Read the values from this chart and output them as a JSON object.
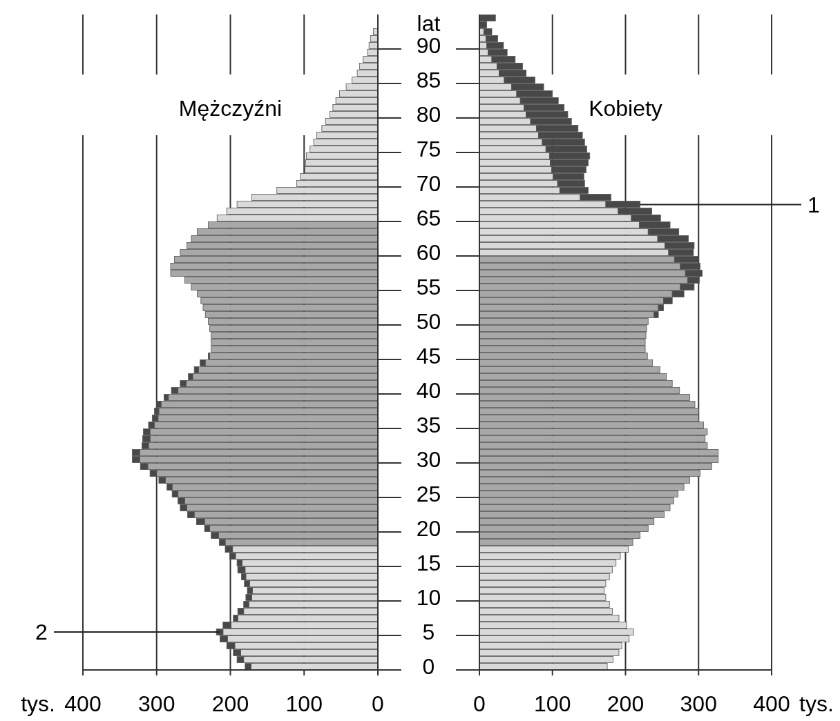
{
  "chart_data": [
    {
      "type": "bar",
      "orientation": "horizontal",
      "stacked": true,
      "title": "Mężczyźni",
      "xlabel": "tys.",
      "xlim": [
        400,
        0
      ],
      "xticks": [
        400,
        300,
        200,
        100,
        0
      ],
      "grid": "x",
      "tick_labels": "x",
      "categories": [
        null,
        null,
        null,
        null,
        "90",
        null,
        null,
        null,
        null,
        "85",
        null,
        null,
        null,
        null,
        "80",
        null,
        null,
        null,
        null,
        "75",
        null,
        null,
        null,
        null,
        "70",
        null,
        null,
        null,
        null,
        "65",
        null,
        null,
        null,
        null,
        "60",
        null,
        null,
        null,
        null,
        "55",
        null,
        null,
        null,
        null,
        "50",
        null,
        null,
        null,
        null,
        "45",
        null,
        null,
        null,
        null,
        "40",
        null,
        null,
        null,
        null,
        "35",
        null,
        null,
        null,
        null,
        "30",
        null,
        null,
        null,
        null,
        "25",
        null,
        null,
        null,
        null,
        "20",
        null,
        null,
        null,
        null,
        "15",
        null,
        null,
        null,
        null,
        "10",
        null,
        null,
        null,
        null,
        "5",
        null,
        null,
        null,
        null,
        "0"
      ],
      "series": [
        {
          "values": [
            null,
            null,
            6,
            10,
            12,
            14,
            20,
            25,
            28,
            35,
            43,
            52,
            57,
            61,
            65,
            71,
            76,
            83,
            87,
            92,
            97,
            98,
            99,
            105,
            110,
            137,
            171,
            191,
            205,
            218,
            230,
            245,
            253,
            259,
            268,
            276,
            281,
            281,
            262,
            253,
            245,
            240,
            237,
            234,
            230,
            228,
            226,
            226,
            226,
            228,
            234,
            243,
            251,
            260,
            271,
            284,
            294,
            297,
            298,
            303,
            309,
            309,
            311,
            323,
            323,
            312,
            300,
            288,
            279,
            271,
            262,
            259,
            249,
            235,
            228,
            216,
            207,
            197,
            193,
            184,
            180,
            179,
            174,
            170,
            171,
            175,
            182,
            190,
            199,
            210,
            204,
            194,
            186,
            182,
            172
          ],
          "colors": [
            null,
            null,
            "#dadada",
            "#dadada",
            "#dadada",
            "#dadada",
            "#dadada",
            "#dadada",
            "#dadada",
            "#dadada",
            "#dadada",
            "#dadada",
            "#dadada",
            "#dadada",
            "#dadada",
            "#dadada",
            "#dadada",
            "#dadada",
            "#dadada",
            "#dadada",
            "#dadada",
            "#dadada",
            "#dadada",
            "#dadada",
            "#dadada",
            "#dadada",
            "#dadada",
            "#dadada",
            "#dadada",
            "#dadada",
            "#a8a8a8",
            "#a8a8a8",
            "#a8a8a8",
            "#a8a8a8",
            "#a8a8a8",
            "#a8a8a8",
            "#a8a8a8",
            "#a8a8a8",
            "#a8a8a8",
            "#a8a8a8",
            "#a8a8a8",
            "#a8a8a8",
            "#a8a8a8",
            "#a8a8a8",
            "#a8a8a8",
            "#a8a8a8",
            "#a8a8a8",
            "#a8a8a8",
            "#a8a8a8",
            "#a8a8a8",
            "#a8a8a8",
            "#a8a8a8",
            "#a8a8a8",
            "#a8a8a8",
            "#a8a8a8",
            "#a8a8a8",
            "#a8a8a8",
            "#a8a8a8",
            "#a8a8a8",
            "#a8a8a8",
            "#a8a8a8",
            "#a8a8a8",
            "#a8a8a8",
            "#a8a8a8",
            "#a8a8a8",
            "#a8a8a8",
            "#a8a8a8",
            "#a8a8a8",
            "#a8a8a8",
            "#a8a8a8",
            "#a8a8a8",
            "#a8a8a8",
            "#a8a8a8",
            "#a8a8a8",
            "#a8a8a8",
            "#a8a8a8",
            "#a8a8a8",
            "#dadada",
            "#dadada",
            "#dadada",
            "#dadada",
            "#dadada",
            "#dadada",
            "#dadada",
            "#dadada",
            "#dadada",
            "#dadada",
            "#dadada",
            "#dadada",
            "#dadada",
            "#dadada",
            "#dadada",
            "#dadada",
            "#dadada",
            "#dadada"
          ]
        },
        {
          "color": "#484848",
          "values": [
            null,
            null,
            null,
            null,
            null,
            null,
            null,
            null,
            null,
            null,
            null,
            null,
            null,
            null,
            null,
            null,
            null,
            null,
            null,
            null,
            null,
            null,
            null,
            null,
            null,
            null,
            null,
            null,
            null,
            null,
            null,
            null,
            null,
            null,
            null,
            null,
            null,
            null,
            null,
            null,
            null,
            null,
            null,
            null,
            null,
            null,
            null,
            null,
            null,
            2,
            7,
            6,
            6,
            8,
            9,
            6,
            6,
            6,
            8,
            8,
            9,
            10,
            9,
            10,
            10,
            10,
            9,
            9,
            7,
            8,
            9,
            9,
            9,
            11,
            7,
            10,
            8,
            10,
            8,
            7,
            10,
            6,
            7,
            7,
            8,
            7,
            8,
            6,
            11,
            9,
            10,
            11,
            10,
            9,
            8
          ]
        }
      ],
      "annotations": [
        {
          "text": "2",
          "x": 214,
          "y": "5"
        }
      ]
    },
    {
      "type": "bar",
      "orientation": "horizontal",
      "stacked": true,
      "title": "Kobiety",
      "xlabel": "tys.",
      "ylabel": "lat",
      "xlim": [
        0,
        400
      ],
      "xticks": [
        0,
        100,
        200,
        300,
        400
      ],
      "grid": "x",
      "categories": [
        null,
        null,
        null,
        null,
        "90",
        null,
        null,
        null,
        null,
        "85",
        null,
        null,
        null,
        null,
        "80",
        null,
        null,
        null,
        null,
        "75",
        null,
        null,
        null,
        null,
        "70",
        null,
        null,
        null,
        null,
        "65",
        null,
        null,
        null,
        null,
        "60",
        null,
        null,
        null,
        null,
        "55",
        null,
        null,
        null,
        null,
        "50",
        null,
        null,
        null,
        null,
        "45",
        null,
        null,
        null,
        null,
        "40",
        null,
        null,
        null,
        null,
        "35",
        null,
        null,
        null,
        null,
        "30",
        null,
        null,
        null,
        null,
        "25",
        null,
        null,
        null,
        null,
        "20",
        null,
        null,
        null,
        null,
        "15",
        null,
        null,
        null,
        null,
        "10",
        null,
        null,
        null,
        null,
        "5",
        null,
        null,
        null,
        null,
        "0"
      ],
      "series": [
        {
          "values": [
            0,
            null,
            6,
            9,
            10,
            12,
            17,
            24,
            27,
            34,
            44,
            51,
            56,
            61,
            64,
            70,
            78,
            81,
            86,
            91,
            96,
            97,
            99,
            101,
            107,
            110,
            138,
            173,
            190,
            208,
            219,
            231,
            244,
            254,
            259,
            267,
            275,
            282,
            285,
            275,
            264,
            252,
            245,
            239,
            231,
            229,
            228,
            227,
            227,
            230,
            237,
            247,
            256,
            264,
            274,
            288,
            295,
            300,
            300,
            307,
            312,
            309,
            312,
            327,
            327,
            318,
            302,
            288,
            280,
            272,
            266,
            261,
            253,
            239,
            231,
            220,
            210,
            204,
            193,
            187,
            182,
            178,
            173,
            171,
            173,
            178,
            182,
            191,
            202,
            211,
            205,
            195,
            191,
            183,
            175
          ],
          "colors": [
            "#dadada",
            null,
            "#dadada",
            "#dadada",
            "#dadada",
            "#dadada",
            "#dadada",
            "#dadada",
            "#dadada",
            "#dadada",
            "#dadada",
            "#dadada",
            "#dadada",
            "#dadada",
            "#dadada",
            "#dadada",
            "#dadada",
            "#dadada",
            "#dadada",
            "#dadada",
            "#dadada",
            "#dadada",
            "#dadada",
            "#dadada",
            "#dadada",
            "#dadada",
            "#dadada",
            "#dadada",
            "#dadada",
            "#dadada",
            "#dadada",
            "#dadada",
            "#dadada",
            "#dadada",
            "#dadada",
            "#a8a8a8",
            "#a8a8a8",
            "#a8a8a8",
            "#a8a8a8",
            "#a8a8a8",
            "#a8a8a8",
            "#a8a8a8",
            "#a8a8a8",
            "#a8a8a8",
            "#a8a8a8",
            "#a8a8a8",
            "#a8a8a8",
            "#a8a8a8",
            "#a8a8a8",
            "#a8a8a8",
            "#a8a8a8",
            "#a8a8a8",
            "#a8a8a8",
            "#a8a8a8",
            "#a8a8a8",
            "#a8a8a8",
            "#a8a8a8",
            "#a8a8a8",
            "#a8a8a8",
            "#a8a8a8",
            "#a8a8a8",
            "#a8a8a8",
            "#a8a8a8",
            "#a8a8a8",
            "#a8a8a8",
            "#a8a8a8",
            "#a8a8a8",
            "#a8a8a8",
            "#a8a8a8",
            "#a8a8a8",
            "#a8a8a8",
            "#a8a8a8",
            "#a8a8a8",
            "#a8a8a8",
            "#a8a8a8",
            "#a8a8a8",
            "#a8a8a8",
            "#dadada",
            "#dadada",
            "#dadada",
            "#dadada",
            "#dadada",
            "#dadada",
            "#dadada",
            "#dadada",
            "#dadada",
            "#dadada",
            "#dadada",
            "#dadada",
            "#dadada",
            "#dadada",
            "#dadada",
            "#dadada",
            "#dadada",
            "#dadada"
          ]
        },
        {
          "color": "#484848",
          "values": [
            22,
            10,
            11,
            16,
            23,
            26,
            32,
            35,
            37,
            42,
            44,
            49,
            52,
            55,
            57,
            56,
            57,
            60,
            58,
            56,
            55,
            52,
            47,
            42,
            37,
            39,
            42,
            47,
            46,
            40,
            42,
            42,
            42,
            40,
            34,
            32,
            27,
            23,
            16,
            19,
            16,
            12,
            7,
            6,
            null,
            null,
            null,
            null,
            null,
            null,
            null,
            null,
            null,
            null,
            null,
            null,
            null,
            null,
            null,
            null,
            null,
            null,
            null,
            null,
            null,
            null,
            null,
            null,
            null,
            null,
            null,
            null,
            null,
            null,
            null,
            null,
            null,
            null,
            null,
            null,
            null,
            null,
            null,
            null,
            null,
            null,
            null,
            null,
            null,
            null,
            null,
            null,
            null,
            null,
            null
          ]
        }
      ],
      "annotations": [
        "1"
      ]
    }
  ]
}
